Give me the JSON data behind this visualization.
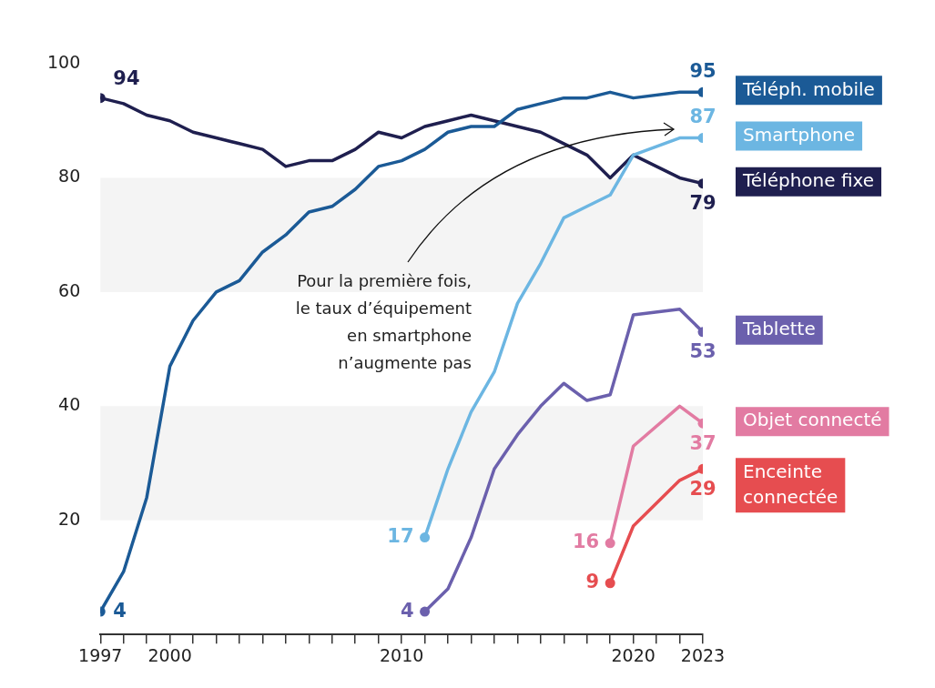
{
  "chart_data": {
    "type": "line",
    "xlim": [
      1997,
      2023
    ],
    "ylim": [
      0,
      100
    ],
    "yticks": [
      20,
      40,
      60,
      80,
      100
    ],
    "xticks": [
      1997,
      {
        "value": 1998,
        "label": null
      },
      {
        "value": 1999,
        "label": null
      },
      2000,
      {
        "value": 2001,
        "label": null
      },
      {
        "value": 2002,
        "label": null
      },
      {
        "value": 2003,
        "label": null
      },
      {
        "value": 2004,
        "label": null
      },
      {
        "value": 2005,
        "label": null
      },
      {
        "value": 2006,
        "label": null
      },
      {
        "value": 2007,
        "label": null
      },
      {
        "value": 2008,
        "label": null
      },
      {
        "value": 2009,
        "label": null
      },
      2010,
      {
        "value": 2011,
        "label": null
      },
      {
        "value": 2012,
        "label": null
      },
      {
        "value": 2013,
        "label": null
      },
      {
        "value": 2014,
        "label": null
      },
      {
        "value": 2015,
        "label": null
      },
      {
        "value": 2016,
        "label": null
      },
      {
        "value": 2017,
        "label": null
      },
      {
        "value": 2018,
        "label": null
      },
      {
        "value": 2019,
        "label": null
      },
      2020,
      {
        "value": 2021,
        "label": null
      },
      {
        "value": 2022,
        "label": null
      },
      2023
    ],
    "grid": false,
    "legend": "right",
    "line_style": "solid",
    "bands": [
      {
        "axis": "y",
        "from": 60,
        "to": 80,
        "color": "#f4f4f4"
      },
      {
        "axis": "y",
        "from": 20,
        "to": 40,
        "color": "#f4f4f4"
      }
    ],
    "annotations": [
      "Pour la première fois,\nle taux d’équipement\nen smartphone\nn’augmente pas"
    ],
    "series": [
      {
        "name": "Téléph. mobile",
        "color": "#1b5a96",
        "x": [
          1997,
          1998,
          1999,
          2000,
          2001,
          2002,
          2003,
          2004,
          2005,
          2006,
          2007,
          2008,
          2009,
          2010,
          2011,
          2012,
          2013,
          2014,
          2015,
          2016,
          2017,
          2018,
          2019,
          2020,
          2022,
          2023
        ],
        "values": [
          4,
          11,
          24,
          47,
          55,
          60,
          62,
          67,
          70,
          74,
          75,
          78,
          82,
          83,
          85,
          88,
          89,
          89,
          92,
          93,
          94,
          94,
          95,
          94,
          95,
          95
        ],
        "value_labels": [
          "4",
          null,
          null,
          null,
          null,
          null,
          null,
          null,
          null,
          null,
          null,
          null,
          null,
          null,
          null,
          null,
          null,
          null,
          null,
          null,
          null,
          null,
          null,
          null,
          null,
          "95"
        ]
      },
      {
        "name": "Smartphone",
        "color": "#6cb6e2",
        "x": [
          2011,
          2012,
          2013,
          2014,
          2015,
          2016,
          2017,
          2018,
          2019,
          2020,
          2022,
          2023
        ],
        "values": [
          17,
          29,
          39,
          46,
          58,
          65,
          73,
          75,
          77,
          84,
          87,
          87
        ],
        "value_labels": [
          "17",
          null,
          null,
          null,
          null,
          null,
          null,
          null,
          null,
          null,
          null,
          "87"
        ]
      },
      {
        "name": "Téléphone fixe",
        "color": "#1f1f4f",
        "x": [
          1997,
          1998,
          1999,
          2000,
          2001,
          2002,
          2003,
          2004,
          2005,
          2006,
          2007,
          2008,
          2009,
          2010,
          2011,
          2012,
          2013,
          2014,
          2015,
          2016,
          2017,
          2018,
          2019,
          2020,
          2022,
          2023
        ],
        "values": [
          94,
          93,
          91,
          90,
          88,
          87,
          86,
          85,
          82,
          83,
          83,
          85,
          88,
          87,
          89,
          90,
          91,
          90,
          89,
          88,
          86,
          84,
          80,
          84,
          80,
          79
        ],
        "value_labels": [
          "94",
          null,
          null,
          null,
          null,
          null,
          null,
          null,
          null,
          null,
          null,
          null,
          null,
          null,
          null,
          null,
          null,
          null,
          null,
          null,
          null,
          null,
          null,
          null,
          null,
          "79"
        ]
      },
      {
        "name": "Tablette",
        "color": "#6b60ad",
        "x": [
          2011,
          2012,
          2013,
          2014,
          2015,
          2016,
          2017,
          2018,
          2019,
          2020,
          2022,
          2023
        ],
        "values": [
          4,
          8,
          17,
          29,
          35,
          40,
          44,
          41,
          42,
          56,
          57,
          53
        ],
        "value_labels": [
          "4",
          null,
          null,
          null,
          null,
          null,
          null,
          null,
          null,
          null,
          null,
          "53"
        ]
      },
      {
        "name": "Objet connecté",
        "color": "#e27ba2",
        "x": [
          2019,
          2020,
          2022,
          2023
        ],
        "values": [
          16,
          33,
          40,
          37
        ],
        "value_labels": [
          "16",
          null,
          null,
          "37"
        ]
      },
      {
        "name": "Enceinte\nconnectée",
        "color": "#e64d50",
        "x": [
          2019,
          2020,
          2022,
          2023
        ],
        "values": [
          9,
          19,
          27,
          29
        ],
        "value_labels": [
          "9",
          null,
          null,
          "29"
        ]
      }
    ]
  }
}
